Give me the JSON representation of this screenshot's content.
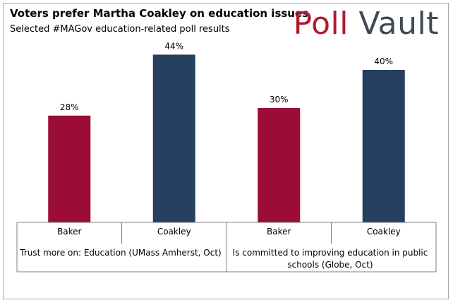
{
  "header": {
    "title": "Voters prefer Martha Coakley on education issues",
    "subtitle": "Selected #MAGov education-related poll results"
  },
  "brand": {
    "part1": "Poll",
    "part2": "Vault"
  },
  "colors": {
    "Baker": "#9b0c36",
    "Coakley": "#243f60",
    "axis": "#7f7f7f"
  },
  "chart_data": {
    "type": "bar",
    "title": "Voters prefer Martha Coakley on education issues",
    "subtitle": "Selected #MAGov education-related poll results",
    "ylim": [
      0,
      50
    ],
    "grid": false,
    "groups": [
      {
        "label": "Trust more on: Education (UMass Amherst, Oct)",
        "bars": [
          {
            "category": "Baker",
            "value": 28,
            "label": "28%"
          },
          {
            "category": "Coakley",
            "value": 44,
            "label": "44%"
          }
        ]
      },
      {
        "label": "Is committed to improving education in public schools (Globe, Oct)",
        "bars": [
          {
            "category": "Baker",
            "value": 30,
            "label": "30%"
          },
          {
            "category": "Coakley",
            "value": 40,
            "label": "40%"
          }
        ]
      }
    ]
  }
}
